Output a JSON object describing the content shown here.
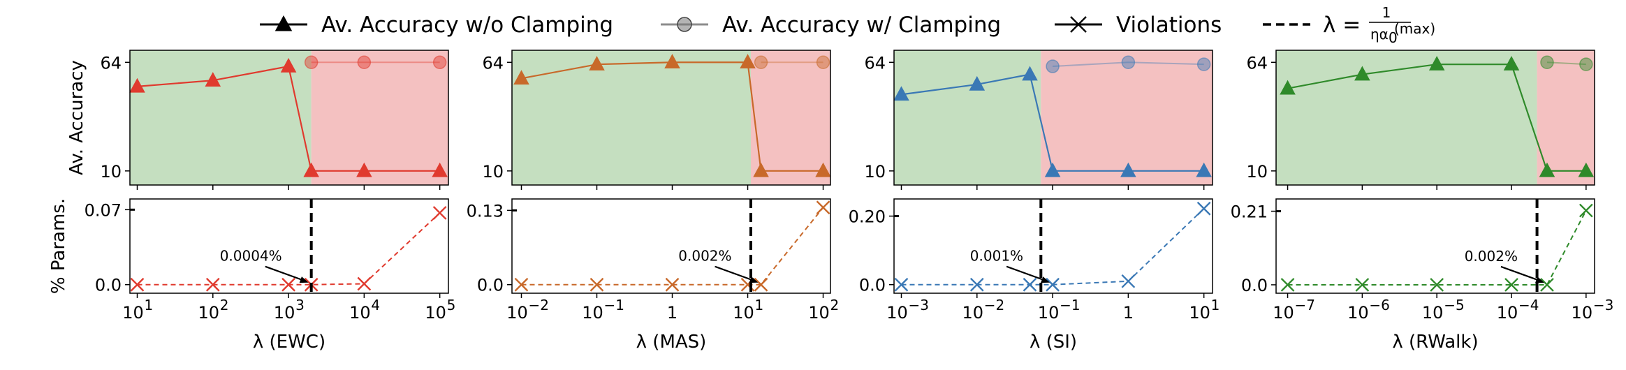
{
  "legend": {
    "entries": [
      {
        "label": "Av. Accuracy w/o Clamping",
        "marker": "triangle"
      },
      {
        "label": "Av. Accuracy w/ Clamping",
        "marker": "circle"
      },
      {
        "label": "Violations",
        "marker": "x"
      },
      {
        "label": "λ = 1/(ηα₀^(max))",
        "marker": "dashed-line"
      }
    ],
    "threshold_main": "λ =",
    "threshold_num": "1",
    "threshold_den": "ηα",
    "threshold_sub": "0",
    "threshold_sup": "(max)"
  },
  "chart_data": [
    {
      "type": "line",
      "panel": "EWC",
      "xlabel": "λ (EWC)",
      "xscale": "log",
      "color": "#e03a2e",
      "x_ticks": [
        {
          "v": 10,
          "label": "10",
          "exp": "1"
        },
        {
          "v": 100,
          "label": "10",
          "exp": "2"
        },
        {
          "v": 1000,
          "label": "10",
          "exp": "3"
        },
        {
          "v": 10000,
          "label": "10",
          "exp": "4"
        },
        {
          "v": 100000,
          "label": "10",
          "exp": "5"
        }
      ],
      "xlim": [
        8,
        130000
      ],
      "threshold": 2000,
      "top": {
        "ylabel": "Av. Accuracy",
        "y_ticks": [
          10,
          64
        ],
        "ylim": [
          3,
          70
        ],
        "without_clamping": {
          "x": [
            10,
            100,
            1000,
            2000,
            10000,
            100000
          ],
          "y": [
            52,
            55,
            62,
            10,
            10,
            10
          ]
        },
        "with_clamping": {
          "x": [
            2000,
            10000,
            100000
          ],
          "y": [
            64,
            64,
            64
          ]
        },
        "safe_region_until": 2000
      },
      "bottom": {
        "ylabel": "% Params.",
        "y_ticks": [
          0.0,
          0.07
        ],
        "y_tick_labels": [
          "0.0",
          "0.07"
        ],
        "ylim": [
          -0.008,
          0.08
        ],
        "violations": {
          "x": [
            10,
            100,
            1000,
            2000,
            10000,
            100000
          ],
          "y": [
            0,
            0,
            0,
            0,
            0.0008,
            0.067
          ]
        },
        "annotation": "0.0004%",
        "annotation_point": {
          "x": 2000,
          "y": 0
        }
      }
    },
    {
      "type": "line",
      "panel": "MAS",
      "xlabel": "λ (MAS)",
      "xscale": "log",
      "color": "#c8692a",
      "x_ticks": [
        {
          "v": 0.01,
          "label": "10",
          "exp": "−2"
        },
        {
          "v": 0.1,
          "label": "10",
          "exp": "−1"
        },
        {
          "v": 1,
          "label": "1",
          "exp": ""
        },
        {
          "v": 10,
          "label": "10",
          "exp": "1"
        },
        {
          "v": 100,
          "label": "10",
          "exp": "2"
        }
      ],
      "xlim": [
        0.0075,
        125
      ],
      "threshold": 11,
      "top": {
        "ylabel": "",
        "y_ticks": [
          10,
          64
        ],
        "ylim": [
          3,
          70
        ],
        "without_clamping": {
          "x": [
            0.01,
            0.1,
            1,
            10,
            15,
            100
          ],
          "y": [
            56,
            63,
            64,
            64,
            10,
            10
          ]
        },
        "with_clamping": {
          "x": [
            15,
            100
          ],
          "y": [
            64,
            64
          ]
        },
        "safe_region_until": 11
      },
      "bottom": {
        "ylabel": "",
        "y_ticks": [
          0.0,
          0.13
        ],
        "y_tick_labels": [
          "0.0",
          "0.13"
        ],
        "ylim": [
          -0.015,
          0.15
        ],
        "violations": {
          "x": [
            0.01,
            0.1,
            1,
            10,
            15,
            100
          ],
          "y": [
            0,
            0,
            0,
            0,
            0,
            0.135
          ]
        },
        "annotation": "0.002%",
        "annotation_point": {
          "x": 15,
          "y": 0
        }
      }
    },
    {
      "type": "line",
      "panel": "SI",
      "xlabel": "λ (SI)",
      "xscale": "log",
      "color": "#3a78b5",
      "x_ticks": [
        {
          "v": 0.001,
          "label": "10",
          "exp": "−3"
        },
        {
          "v": 0.01,
          "label": "10",
          "exp": "−2"
        },
        {
          "v": 0.1,
          "label": "10",
          "exp": "−1"
        },
        {
          "v": 1,
          "label": "1",
          "exp": ""
        },
        {
          "v": 10,
          "label": "10",
          "exp": "1"
        }
      ],
      "xlim": [
        0.0008,
        13
      ],
      "threshold": 0.07,
      "top": {
        "ylabel": "",
        "y_ticks": [
          10,
          64
        ],
        "ylim": [
          3,
          70
        ],
        "without_clamping": {
          "x": [
            0.001,
            0.01,
            0.05,
            0.1,
            1,
            10
          ],
          "y": [
            48,
            53,
            58,
            10,
            10,
            10
          ]
        },
        "with_clamping": {
          "x": [
            0.1,
            1,
            10
          ],
          "y": [
            62,
            64,
            63
          ]
        },
        "safe_region_until": 0.07
      },
      "bottom": {
        "ylabel": "",
        "y_ticks": [
          0.0,
          0.2
        ],
        "y_tick_labels": [
          "0.0",
          "0.20"
        ],
        "ylim": [
          -0.025,
          0.25
        ],
        "violations": {
          "x": [
            0.001,
            0.01,
            0.05,
            0.1,
            1,
            10
          ],
          "y": [
            0,
            0,
            0,
            0,
            0.01,
            0.222
          ]
        },
        "annotation": "0.001%",
        "annotation_point": {
          "x": 0.1,
          "y": 0
        }
      }
    },
    {
      "type": "line",
      "panel": "RWalk",
      "xlabel": "λ (RWalk)",
      "xscale": "log",
      "color": "#2f8a2a",
      "x_ticks": [
        {
          "v": 1e-07,
          "label": "10",
          "exp": "−7"
        },
        {
          "v": 1e-06,
          "label": "10",
          "exp": "−6"
        },
        {
          "v": 1e-05,
          "label": "10",
          "exp": "−5"
        },
        {
          "v": 0.0001,
          "label": "10",
          "exp": "−4"
        },
        {
          "v": 0.001,
          "label": "10",
          "exp": "−3"
        }
      ],
      "xlim": [
        7e-08,
        0.0013
      ],
      "threshold": 0.00022,
      "top": {
        "ylabel": "",
        "y_ticks": [
          10,
          64
        ],
        "ylim": [
          3,
          70
        ],
        "without_clamping": {
          "x": [
            1e-07,
            1e-06,
            1e-05,
            0.0001,
            0.0003,
            0.001
          ],
          "y": [
            51,
            58,
            63,
            63,
            10,
            10
          ]
        },
        "with_clamping": {
          "x": [
            0.0003,
            0.001
          ],
          "y": [
            64,
            63
          ]
        },
        "safe_region_until": 0.00022
      },
      "bottom": {
        "ylabel": "",
        "y_ticks": [
          0.0,
          0.21
        ],
        "y_tick_labels": [
          "0.0",
          "0.21"
        ],
        "ylim": [
          -0.024,
          0.245
        ],
        "violations": {
          "x": [
            1e-07,
            1e-06,
            1e-05,
            0.0001,
            0.0003,
            0.001
          ],
          "y": [
            0,
            0,
            0,
            0,
            0,
            0.212
          ]
        },
        "annotation": "0.002%",
        "annotation_point": {
          "x": 0.0003,
          "y": 0
        }
      }
    }
  ]
}
